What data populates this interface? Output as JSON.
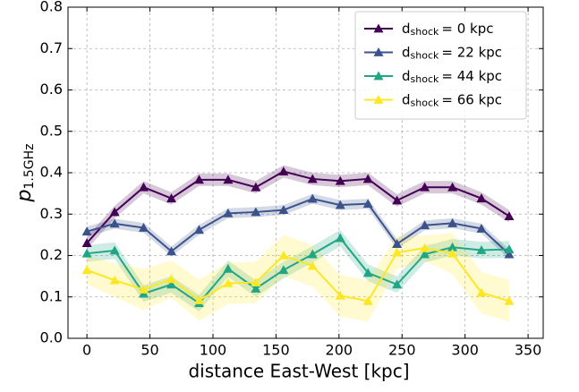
{
  "chart_data": {
    "type": "line",
    "xlabel": "distance East-West [kpc]",
    "ylabel": {
      "base": "p",
      "sub": "1.5GHz"
    },
    "x": [
      0,
      22,
      45,
      67,
      89,
      112,
      134,
      156,
      179,
      201,
      223,
      246,
      268,
      290,
      313,
      335
    ],
    "series": [
      {
        "name": {
          "base": "d",
          "sub": "shock",
          "rest": "= 0 kpc"
        },
        "color": "#440154",
        "values": [
          0.23,
          0.305,
          0.365,
          0.338,
          0.383,
          0.383,
          0.365,
          0.403,
          0.385,
          0.38,
          0.385,
          0.333,
          0.365,
          0.365,
          0.338,
          0.295
        ],
        "errors": [
          0.015,
          0.015,
          0.015,
          0.015,
          0.015,
          0.015,
          0.015,
          0.015,
          0.015,
          0.015,
          0.015,
          0.015,
          0.015,
          0.015,
          0.015,
          0.015
        ]
      },
      {
        "name": {
          "base": "d",
          "sub": "shock",
          "rest": "= 22 kpc"
        },
        "color": "#3b528b",
        "values": [
          0.258,
          0.277,
          0.267,
          0.21,
          0.262,
          0.302,
          0.305,
          0.31,
          0.337,
          0.322,
          0.325,
          0.228,
          0.273,
          0.278,
          0.265,
          0.203
        ],
        "errors": [
          0.012,
          0.012,
          0.012,
          0.012,
          0.012,
          0.012,
          0.012,
          0.012,
          0.012,
          0.012,
          0.012,
          0.012,
          0.012,
          0.012,
          0.012,
          0.012
        ]
      },
      {
        "name": {
          "base": "d",
          "sub": "shock",
          "rest": "= 44 kpc"
        },
        "color": "#21a685",
        "values": [
          0.205,
          0.212,
          0.108,
          0.13,
          0.085,
          0.168,
          0.12,
          0.165,
          0.203,
          0.242,
          0.158,
          0.13,
          0.203,
          0.22,
          0.213,
          0.215
        ],
        "errors": [
          0.02,
          0.02,
          0.02,
          0.02,
          0.02,
          0.02,
          0.02,
          0.02,
          0.02,
          0.02,
          0.02,
          0.02,
          0.02,
          0.02,
          0.02,
          0.02
        ]
      },
      {
        "name": {
          "base": "d",
          "sub": "shock",
          "rest": "= 66 kpc"
        },
        "color": "#fde725",
        "values": [
          0.165,
          0.14,
          0.118,
          0.143,
          0.092,
          0.133,
          0.135,
          0.2,
          0.175,
          0.103,
          0.09,
          0.207,
          0.218,
          0.205,
          0.11,
          0.09
        ],
        "errors": [
          0.035,
          0.04,
          0.05,
          0.045,
          0.05,
          0.05,
          0.05,
          0.05,
          0.05,
          0.05,
          0.05,
          0.04,
          0.03,
          0.05,
          0.05,
          0.05
        ]
      }
    ],
    "xlim": [
      -15,
      362
    ],
    "xticks": [
      0,
      50,
      100,
      150,
      200,
      250,
      300,
      350
    ],
    "ylim": [
      0,
      0.8
    ],
    "yticks": [
      {
        "value": 0,
        "label": "0.0"
      },
      0.1,
      0.2,
      0.3,
      0.4,
      0.5,
      0.6,
      0.7,
      {
        "value": 0.8,
        "label": "0.8"
      }
    ],
    "grid": true,
    "legend": "upper right"
  }
}
